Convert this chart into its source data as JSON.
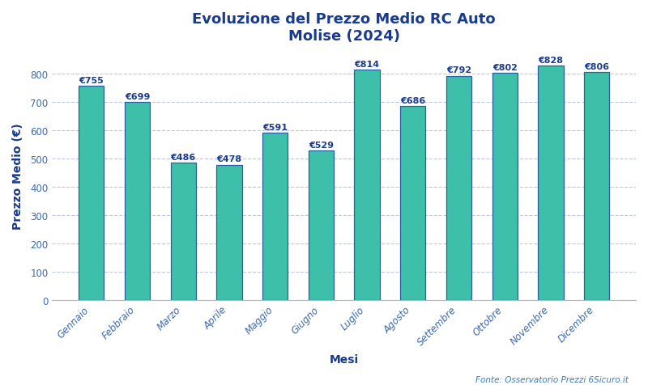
{
  "title_line1": "Evoluzione del Prezzo Medio RC Auto",
  "title_line2": "Molise (2024)",
  "xlabel": "Mesi",
  "ylabel": "Prezzo Medio (€)",
  "source": "Fonte: Osservatorio Prezzi 6Sicuro.it",
  "categories": [
    "Gennaio",
    "Febbraio",
    "Marzo",
    "Aprile",
    "Maggio",
    "Giugno",
    "Luglio",
    "Agosto",
    "Settembre",
    "Ottobre",
    "Novembre",
    "Dicembre"
  ],
  "values": [
    755,
    699,
    486,
    478,
    591,
    529,
    814,
    686,
    792,
    802,
    828,
    806
  ],
  "bar_color": "#3dbfaa",
  "bar_edge_color": "#2a5fa0",
  "title_color": "#1a3a8c",
  "label_color": "#1a3a8c",
  "axis_label_color": "#1a3a8c",
  "tick_color": "#3a6ab0",
  "source_color": "#3a7abf",
  "grid_color": "#c0c8d8",
  "background_color": "#ffffff",
  "ylim": [
    0,
    880
  ],
  "yticks": [
    0,
    100,
    200,
    300,
    400,
    500,
    600,
    700,
    800
  ],
  "bar_label_fontsize": 8,
  "title_fontsize": 13,
  "axis_label_fontsize": 10,
  "tick_fontsize": 8.5,
  "source_fontsize": 7.5,
  "bar_width": 0.55
}
